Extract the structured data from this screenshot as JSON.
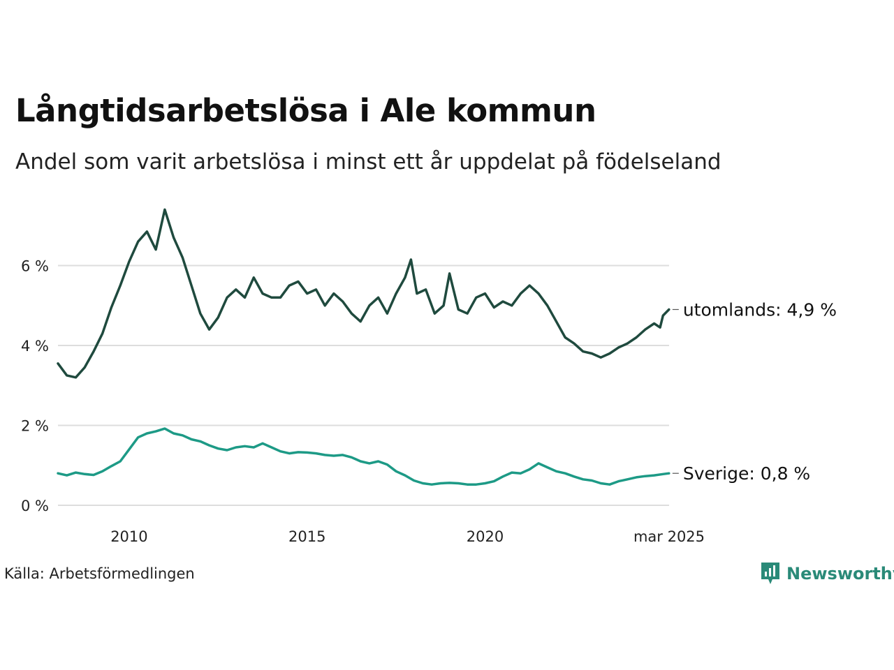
{
  "header": {
    "title": "Långtidsarbetslösa i Ale kommun",
    "subtitle": "Andel som varit arbetslösa i minst ett år uppdelat på födelseland"
  },
  "footer": {
    "source": "Källa: Arbetsförmedlingen",
    "brand": "Newsworthy"
  },
  "colors": {
    "utomlands": "#1f4a3e",
    "sverige": "#1d9a86",
    "grid": "#dddddd",
    "brand": "#2a8a78"
  },
  "chart_data": {
    "type": "line",
    "title": "Långtidsarbetslösa i Ale kommun",
    "subtitle": "Andel som varit arbetslösa i minst ett år uppdelat på födelseland",
    "xlabel": "",
    "ylabel": "",
    "x_ticks": [
      "2010",
      "2015",
      "2020",
      "mar 2025"
    ],
    "y_ticks": [
      "0 %",
      "2 %",
      "4 %",
      "6 %"
    ],
    "ylim": [
      0,
      7.5
    ],
    "grid": true,
    "legend": "end-labels",
    "series": [
      {
        "name": "utomlands",
        "end_label": "utomlands: 4,9 %",
        "points": [
          [
            "2008-01",
            3.55
          ],
          [
            "2008-04",
            3.25
          ],
          [
            "2008-07",
            3.2
          ],
          [
            "2008-10",
            3.45
          ],
          [
            "2009-01",
            3.85
          ],
          [
            "2009-04",
            4.3
          ],
          [
            "2009-07",
            4.95
          ],
          [
            "2009-10",
            5.5
          ],
          [
            "2010-01",
            6.1
          ],
          [
            "2010-04",
            6.6
          ],
          [
            "2010-07",
            6.85
          ],
          [
            "2010-10",
            6.4
          ],
          [
            "2011-01",
            7.4
          ],
          [
            "2011-04",
            6.7
          ],
          [
            "2011-07",
            6.2
          ],
          [
            "2011-10",
            5.5
          ],
          [
            "2012-01",
            4.8
          ],
          [
            "2012-04",
            4.4
          ],
          [
            "2012-07",
            4.7
          ],
          [
            "2012-10",
            5.2
          ],
          [
            "2013-01",
            5.4
          ],
          [
            "2013-04",
            5.2
          ],
          [
            "2013-07",
            5.7
          ],
          [
            "2013-10",
            5.3
          ],
          [
            "2014-01",
            5.2
          ],
          [
            "2014-04",
            5.2
          ],
          [
            "2014-07",
            5.5
          ],
          [
            "2014-10",
            5.6
          ],
          [
            "2015-01",
            5.3
          ],
          [
            "2015-04",
            5.4
          ],
          [
            "2015-07",
            5.0
          ],
          [
            "2015-10",
            5.3
          ],
          [
            "2016-01",
            5.1
          ],
          [
            "2016-04",
            4.8
          ],
          [
            "2016-07",
            4.6
          ],
          [
            "2016-10",
            5.0
          ],
          [
            "2017-01",
            5.2
          ],
          [
            "2017-04",
            4.8
          ],
          [
            "2017-07",
            5.3
          ],
          [
            "2017-10",
            5.7
          ],
          [
            "2017-12",
            6.15
          ],
          [
            "2018-02",
            5.3
          ],
          [
            "2018-05",
            5.4
          ],
          [
            "2018-08",
            4.8
          ],
          [
            "2018-11",
            5.0
          ],
          [
            "2019-01",
            5.8
          ],
          [
            "2019-04",
            4.9
          ],
          [
            "2019-07",
            4.8
          ],
          [
            "2019-10",
            5.2
          ],
          [
            "2020-01",
            5.3
          ],
          [
            "2020-04",
            4.95
          ],
          [
            "2020-07",
            5.1
          ],
          [
            "2020-10",
            5.0
          ],
          [
            "2021-01",
            5.3
          ],
          [
            "2021-04",
            5.5
          ],
          [
            "2021-07",
            5.3
          ],
          [
            "2021-10",
            5.0
          ],
          [
            "2022-01",
            4.6
          ],
          [
            "2022-04",
            4.2
          ],
          [
            "2022-07",
            4.05
          ],
          [
            "2022-10",
            3.85
          ],
          [
            "2023-01",
            3.8
          ],
          [
            "2023-04",
            3.7
          ],
          [
            "2023-07",
            3.8
          ],
          [
            "2023-10",
            3.95
          ],
          [
            "2024-01",
            4.05
          ],
          [
            "2024-04",
            4.2
          ],
          [
            "2024-07",
            4.4
          ],
          [
            "2024-10",
            4.55
          ],
          [
            "2024-12",
            4.45
          ],
          [
            "2025-01",
            4.75
          ],
          [
            "2025-03",
            4.9
          ]
        ]
      },
      {
        "name": "Sverige",
        "end_label": "Sverige: 0,8 %",
        "points": [
          [
            "2008-01",
            0.8
          ],
          [
            "2008-04",
            0.75
          ],
          [
            "2008-07",
            0.82
          ],
          [
            "2008-10",
            0.78
          ],
          [
            "2009-01",
            0.76
          ],
          [
            "2009-04",
            0.85
          ],
          [
            "2009-07",
            0.98
          ],
          [
            "2009-10",
            1.1
          ],
          [
            "2010-01",
            1.4
          ],
          [
            "2010-04",
            1.7
          ],
          [
            "2010-07",
            1.8
          ],
          [
            "2010-10",
            1.85
          ],
          [
            "2011-01",
            1.92
          ],
          [
            "2011-04",
            1.8
          ],
          [
            "2011-07",
            1.75
          ],
          [
            "2011-10",
            1.65
          ],
          [
            "2012-01",
            1.6
          ],
          [
            "2012-04",
            1.5
          ],
          [
            "2012-07",
            1.42
          ],
          [
            "2012-10",
            1.38
          ],
          [
            "2013-01",
            1.45
          ],
          [
            "2013-04",
            1.48
          ],
          [
            "2013-07",
            1.45
          ],
          [
            "2013-10",
            1.55
          ],
          [
            "2014-01",
            1.45
          ],
          [
            "2014-04",
            1.35
          ],
          [
            "2014-07",
            1.3
          ],
          [
            "2014-10",
            1.33
          ],
          [
            "2015-01",
            1.32
          ],
          [
            "2015-04",
            1.3
          ],
          [
            "2015-07",
            1.26
          ],
          [
            "2015-10",
            1.24
          ],
          [
            "2016-01",
            1.26
          ],
          [
            "2016-04",
            1.2
          ],
          [
            "2016-07",
            1.1
          ],
          [
            "2016-10",
            1.05
          ],
          [
            "2017-01",
            1.1
          ],
          [
            "2017-04",
            1.02
          ],
          [
            "2017-07",
            0.85
          ],
          [
            "2017-10",
            0.75
          ],
          [
            "2018-01",
            0.62
          ],
          [
            "2018-04",
            0.55
          ],
          [
            "2018-07",
            0.52
          ],
          [
            "2018-10",
            0.55
          ],
          [
            "2019-01",
            0.56
          ],
          [
            "2019-04",
            0.55
          ],
          [
            "2019-07",
            0.52
          ],
          [
            "2019-10",
            0.52
          ],
          [
            "2020-01",
            0.55
          ],
          [
            "2020-04",
            0.6
          ],
          [
            "2020-07",
            0.72
          ],
          [
            "2020-10",
            0.82
          ],
          [
            "2021-01",
            0.8
          ],
          [
            "2021-04",
            0.9
          ],
          [
            "2021-07",
            1.05
          ],
          [
            "2021-10",
            0.95
          ],
          [
            "2022-01",
            0.85
          ],
          [
            "2022-04",
            0.8
          ],
          [
            "2022-07",
            0.72
          ],
          [
            "2022-10",
            0.65
          ],
          [
            "2023-01",
            0.62
          ],
          [
            "2023-04",
            0.55
          ],
          [
            "2023-07",
            0.52
          ],
          [
            "2023-10",
            0.6
          ],
          [
            "2024-01",
            0.65
          ],
          [
            "2024-04",
            0.7
          ],
          [
            "2024-07",
            0.73
          ],
          [
            "2024-10",
            0.75
          ],
          [
            "2025-01",
            0.78
          ],
          [
            "2025-03",
            0.8
          ]
        ]
      }
    ]
  }
}
